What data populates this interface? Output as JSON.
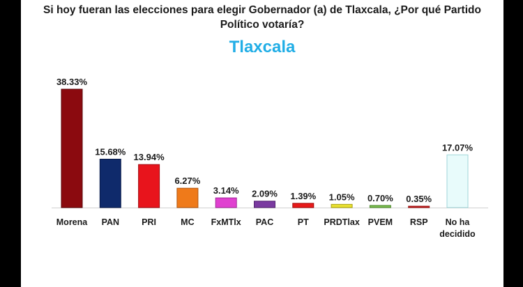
{
  "header": {
    "title_line1": "Si hoy fueran las elecciones para elegir Gobernador (a) de Tlaxcala, ¿Por qué Partido",
    "title_line2": "Político votaría?",
    "subtitle": "Tlaxcala"
  },
  "chart_data": {
    "type": "bar",
    "title": "Si hoy fueran las elecciones para elegir Gobernador (a) de Tlaxcala, ¿Por qué Partido Político votaría?",
    "subtitle": "Tlaxcala",
    "xlabel": "",
    "ylabel": "",
    "ylim": [
      0,
      40
    ],
    "grid": false,
    "legend": "none",
    "categories": [
      "Morena",
      "PAN",
      "PRI",
      "MC",
      "FxMTlx",
      "PAC",
      "PT",
      "PRDTlax",
      "PVEM",
      "RSP",
      "No ha decidido"
    ],
    "category_lines": [
      [
        "Morena"
      ],
      [
        "PAN"
      ],
      [
        "PRI"
      ],
      [
        "MC"
      ],
      [
        "FxMTlx"
      ],
      [
        "PAC"
      ],
      [
        "PT"
      ],
      [
        "PRDTlax"
      ],
      [
        "PVEM"
      ],
      [
        "RSP"
      ],
      [
        "No ha",
        "decidido"
      ]
    ],
    "values": [
      38.33,
      15.68,
      13.94,
      6.27,
      3.14,
      2.09,
      1.39,
      1.05,
      0.7,
      0.35,
      17.07
    ],
    "value_labels": [
      "38.33%",
      "15.68%",
      "13.94%",
      "6.27%",
      "3.14%",
      "2.09%",
      "1.39%",
      "1.05%",
      "0.70%",
      "0.35%",
      "17.07%"
    ],
    "colors": [
      "#8b0a0f",
      "#0f2a6b",
      "#e8141c",
      "#ef7a1a",
      "#e040d0",
      "#7a3aa0",
      "#e81a1a",
      "#e8e030",
      "#7cc050",
      "#d42020",
      "#e8fbfb"
    ],
    "edge_colors": [
      "#5a0508",
      "#081a48",
      "#a00a10",
      "#b05510",
      "#a02898",
      "#52246e",
      "#a00a0a",
      "#a8a010",
      "#508830",
      "#901010",
      "#9fd6d8"
    ]
  }
}
